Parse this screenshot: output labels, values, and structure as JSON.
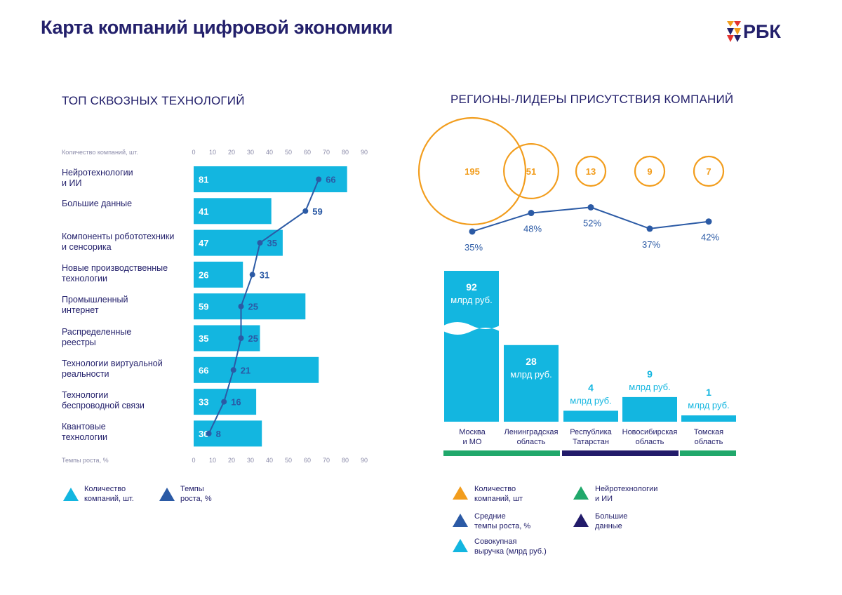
{
  "page": {
    "title": "Карта компаний цифровой экономики",
    "logo_text": "РБК"
  },
  "colors": {
    "navy": "#23206b",
    "cyan": "#13b6e0",
    "blue": "#2b5aa5",
    "orange": "#f29d1d",
    "green": "#20a86b",
    "dark": "#221b6a"
  },
  "chart_data": [
    {
      "type": "bar",
      "orientation": "horizontal",
      "title": "ТОП СКВОЗНЫХ ТЕХНОЛОГИЙ",
      "xlabel_top": "Количество компаний, шт.",
      "xlabel_bottom": "Темпы роста, %",
      "ticks": [
        "0",
        "10",
        "20",
        "30",
        "40",
        "50",
        "60",
        "70",
        "80",
        "90"
      ],
      "xlim": [
        0,
        90
      ],
      "categories": [
        "Нейротехнологии\nи ИИ",
        "Большие данные",
        "Компоненты робототехники\nи сенсорика",
        "Новые производственные\nтехнологии",
        "Промышленный\nинтернет",
        "Распределенные\nреестры",
        "Технологии виртуальной\nреальности",
        "Технологии\nбеспроводной связи",
        "Квантовые\nтехнологии"
      ],
      "series": [
        {
          "name": "Количество компаний, шт.",
          "kind": "bar",
          "values": [
            81,
            41,
            47,
            26,
            59,
            35,
            66,
            33,
            36
          ]
        },
        {
          "name": "Темпы роста, %",
          "kind": "line",
          "values": [
            66,
            59,
            35,
            31,
            25,
            25,
            21,
            16,
            8
          ]
        }
      ],
      "legend": [
        {
          "label": "Количество\nкомпаний, шт.",
          "color": "#13b6e0"
        },
        {
          "label": "Темпы\nроста, %",
          "color": "#2b5aa5"
        }
      ]
    },
    {
      "type": "bar",
      "title": "РЕГИОНЫ-ЛИДЕРЫ ПРИСУТСТВИЯ КОМПАНИЙ",
      "categories": [
        "Москва\nи МО",
        "Ленинградская\nобласть",
        "Республика\nТатарстан",
        "Новосибирская\nобласть",
        "Томская\nобласть"
      ],
      "series": [
        {
          "name": "Количество компаний, шт",
          "kind": "bubble",
          "values": [
            195,
            51,
            13,
            9,
            7
          ]
        },
        {
          "name": "Средние темпы роста, %",
          "kind": "line",
          "values": [
            35,
            48,
            52,
            37,
            42
          ],
          "labels": [
            "35%",
            "48%",
            "52%",
            "37%",
            "42%"
          ]
        },
        {
          "name": "Совокупная выручка (млрд руб.)",
          "kind": "bar",
          "values": [
            92,
            28,
            4,
            9,
            1
          ],
          "unit": "млрд руб."
        }
      ],
      "groups": [
        {
          "name": "Нейротехнологии и ИИ",
          "color": "#20a86b",
          "regions": [
            0,
            1
          ]
        },
        {
          "name": "Большие данные",
          "color": "#221b6a",
          "regions": [
            2,
            3
          ]
        },
        {
          "name": "",
          "color": "#20a86b",
          "regions": [
            4
          ]
        }
      ],
      "legend": [
        {
          "label": "Количество\nкомпаний, шт",
          "color": "#f29d1d"
        },
        {
          "label": "Нейротехнологии\nи ИИ",
          "color": "#20a86b"
        },
        {
          "label": "Средние\nтемпы роста, %",
          "color": "#2b5aa5"
        },
        {
          "label": "Большие\nданные",
          "color": "#221b6a"
        },
        {
          "label": "Совокупная\nвыручка (млрд руб.)",
          "color": "#13b6e0"
        }
      ]
    }
  ]
}
